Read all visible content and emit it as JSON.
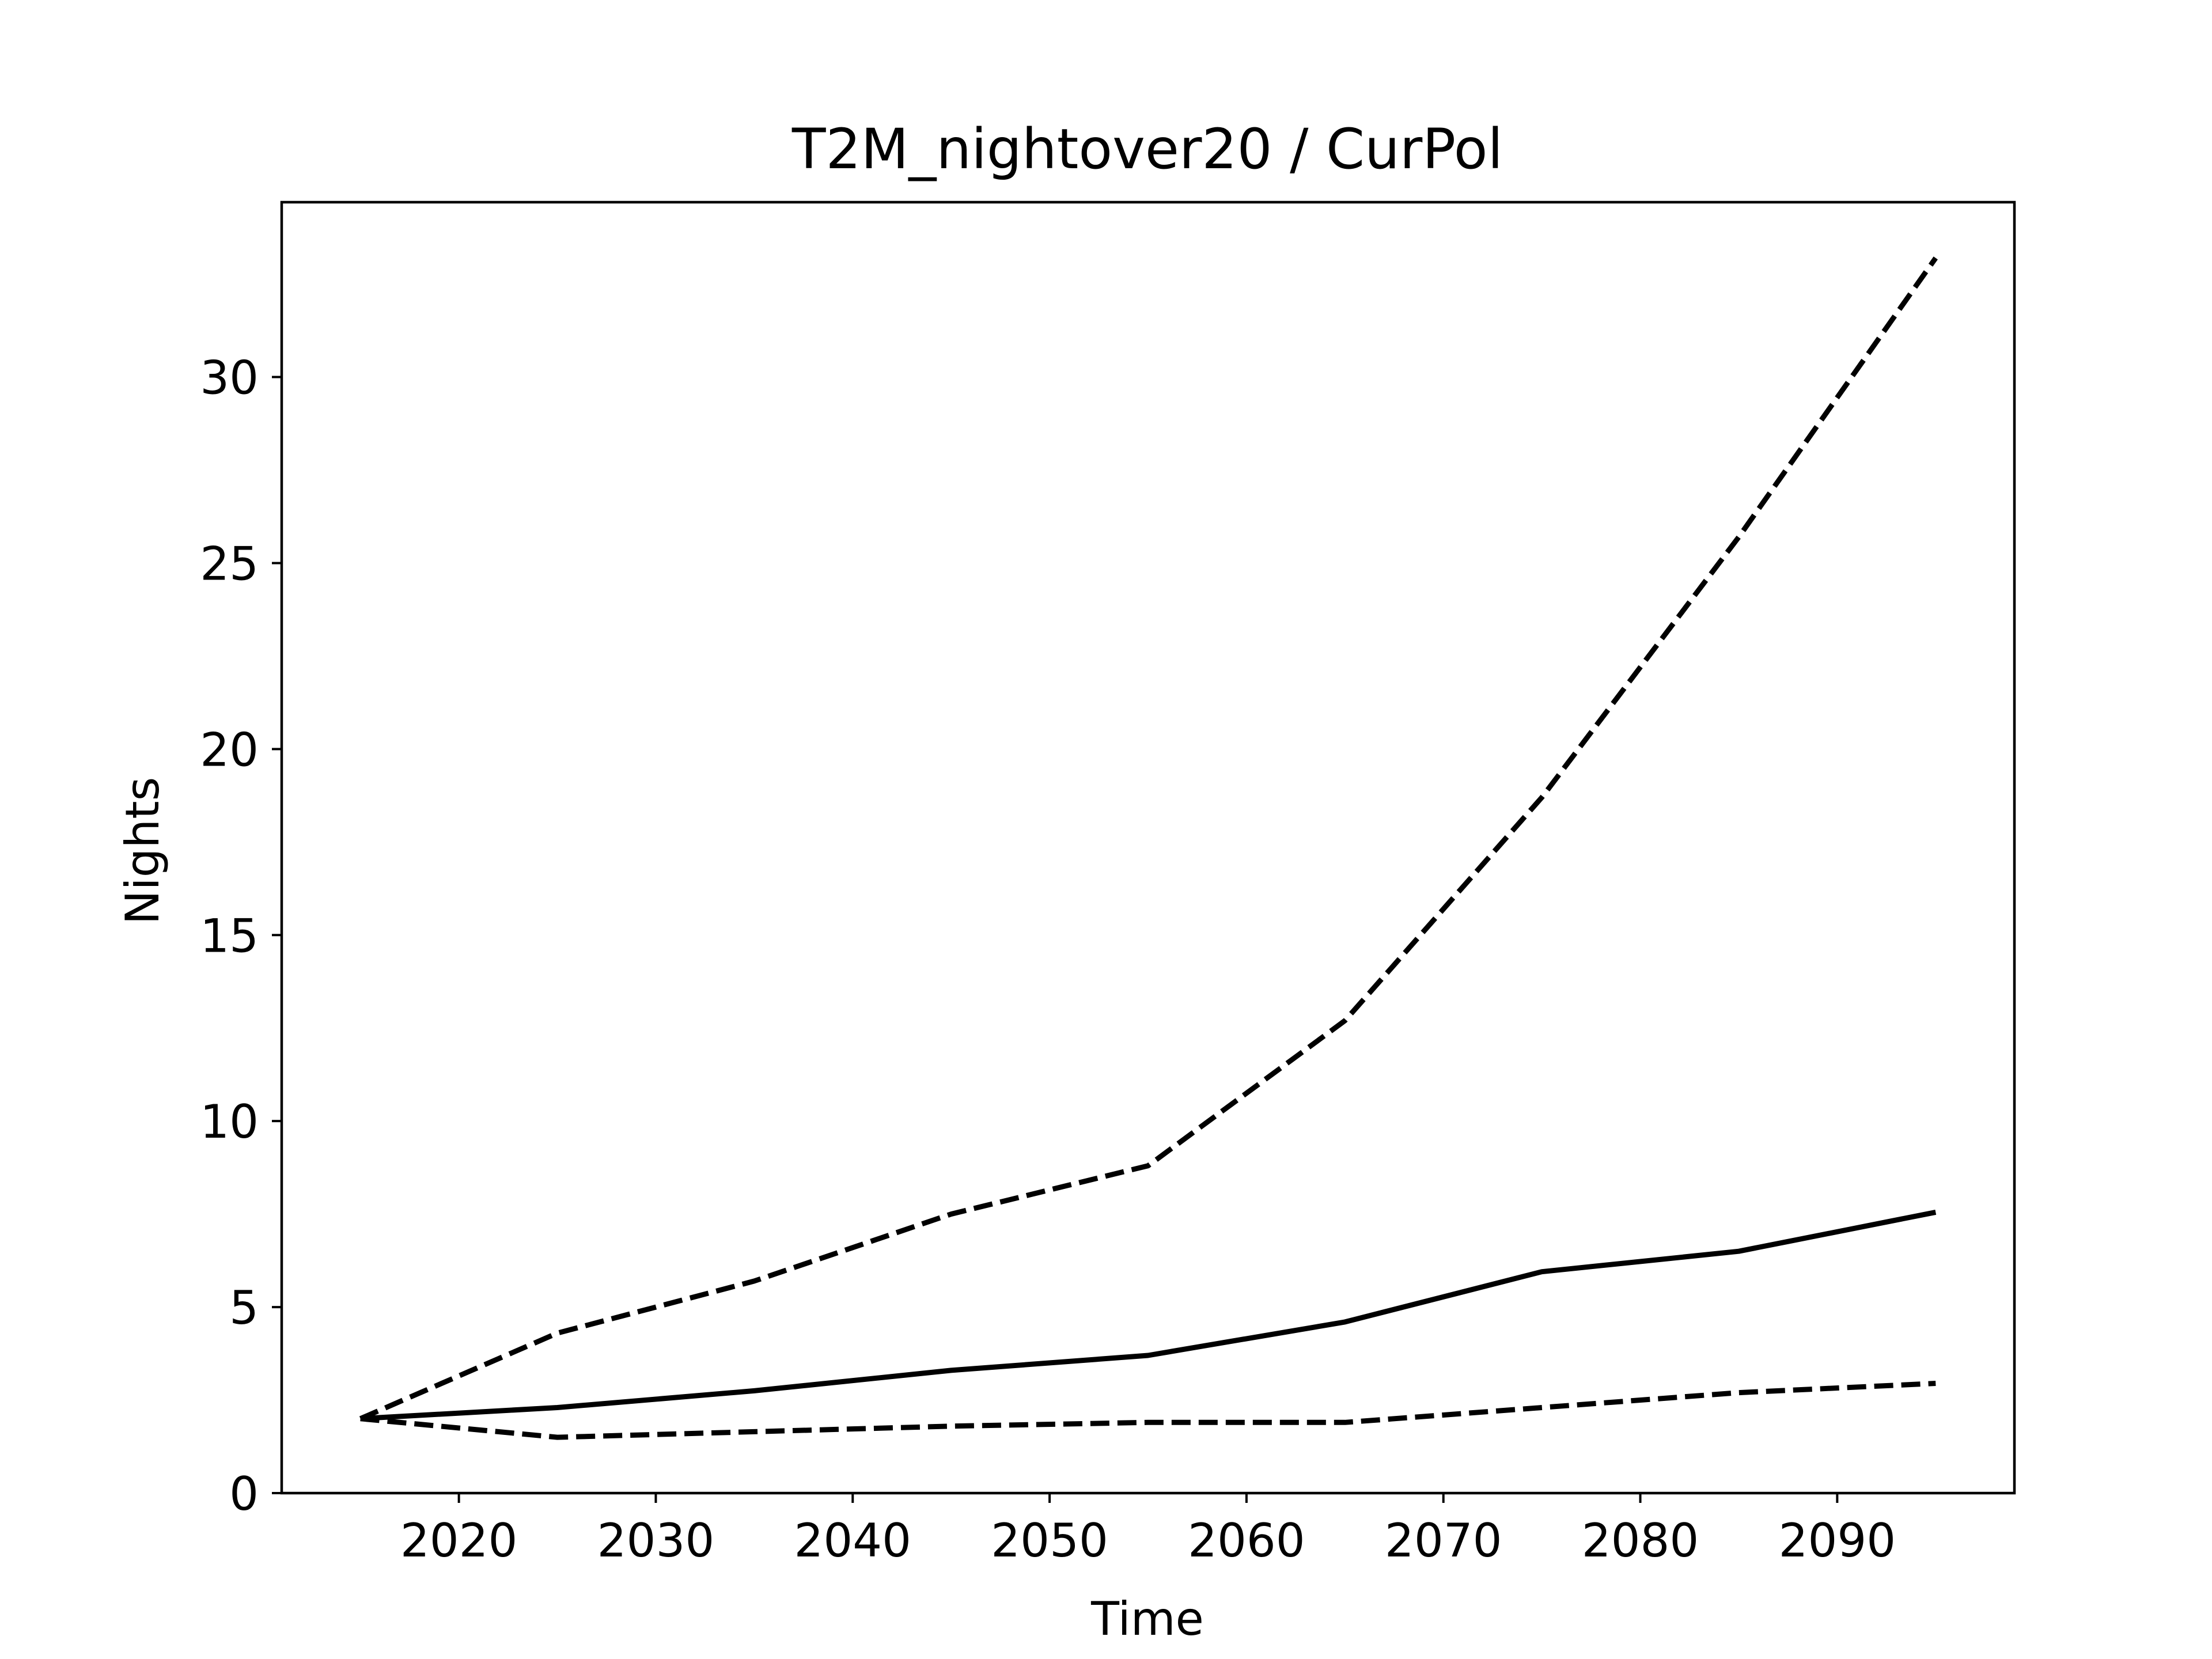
{
  "chart_data": {
    "type": "line",
    "title": "T2M_nightover20 / CurPol",
    "xlabel": "Time",
    "ylabel": "Nights",
    "xlim": [
      2011,
      2099
    ],
    "ylim": [
      0,
      34.7
    ],
    "xticks": [
      2020,
      2030,
      2040,
      2050,
      2060,
      2070,
      2080,
      2090
    ],
    "yticks": [
      0,
      5,
      10,
      15,
      20,
      25,
      30
    ],
    "grid": false,
    "x": [
      2015,
      2025,
      2035,
      2045,
      2055,
      2065,
      2075,
      2085,
      2095
    ],
    "series": [
      {
        "style": "dashed",
        "values": [
          2.0,
          4.3,
          5.7,
          7.5,
          8.8,
          12.7,
          18.7,
          25.7,
          33.2
        ]
      },
      {
        "style": "solid",
        "values": [
          2.0,
          2.3,
          2.75,
          3.3,
          3.7,
          4.6,
          5.95,
          6.5,
          7.55
        ]
      },
      {
        "style": "dashed",
        "values": [
          2.0,
          1.5,
          1.65,
          1.8,
          1.9,
          1.9,
          2.3,
          2.7,
          2.95
        ]
      }
    ]
  }
}
